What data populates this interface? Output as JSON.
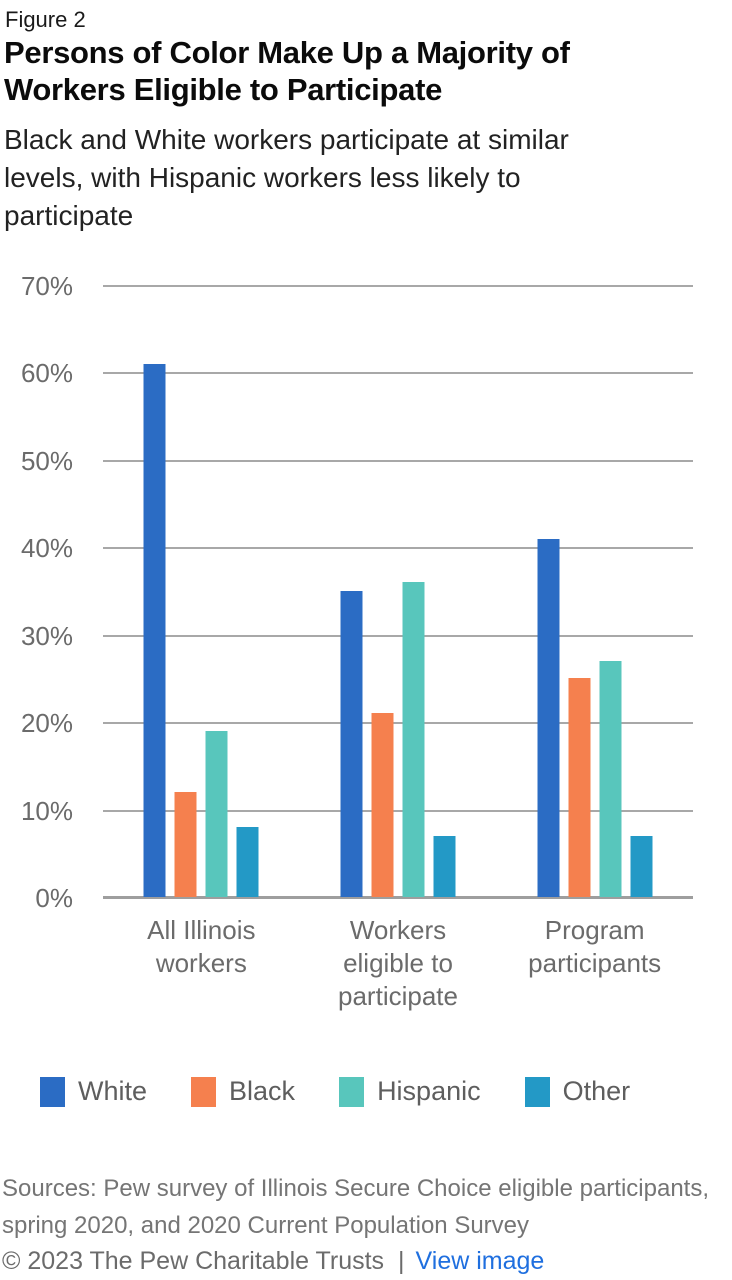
{
  "figure": {
    "kicker": "Figure 2",
    "title_lines": [
      "Persons of Color Make Up a Majority of",
      "Workers Eligible to Participate"
    ],
    "subtitle_lines": [
      "Black and White workers participate at similar",
      "levels, with Hispanic workers less likely to",
      "participate"
    ]
  },
  "chart_data": {
    "type": "bar",
    "title": "Persons of Color Make Up a Majority of Workers Eligible to Participate",
    "subtitle": "Black and White workers participate at similar levels, with Hispanic workers less likely to participate",
    "categories": [
      "All Illinois workers",
      "Workers eligible to participate",
      "Program participants"
    ],
    "category_label_lines": [
      [
        "All Illinois",
        "workers"
      ],
      [
        "Workers",
        "eligible to",
        "participate"
      ],
      [
        "Program",
        "participants"
      ]
    ],
    "series": [
      {
        "name": "White",
        "color": "#2b6cc4",
        "values": [
          61,
          35,
          41
        ]
      },
      {
        "name": "Black",
        "color": "#f5804e",
        "values": [
          12,
          21,
          25
        ]
      },
      {
        "name": "Hispanic",
        "color": "#58c6bc",
        "values": [
          19,
          36,
          27
        ]
      },
      {
        "name": "Other",
        "color": "#2399c6",
        "values": [
          8,
          7,
          7
        ]
      }
    ],
    "xlabel": "",
    "ylabel": "",
    "ylim": [
      0,
      70
    ],
    "ytick_step": 10,
    "ytick_suffix": "%",
    "grid": true,
    "legend_position": "bottom",
    "grid_color": "#a8a8a8",
    "axis_color": "#9e9e9e"
  },
  "footer": {
    "sources_lines": [
      "Sources: Pew survey of Illinois Secure Choice eligible participants,",
      "spring 2020, and 2020 Current Population Survey"
    ],
    "copyright": "© 2023 The Pew Charitable Trusts",
    "separator": "|",
    "view_image_label": "View image",
    "link_color": "#1f6fdf"
  }
}
